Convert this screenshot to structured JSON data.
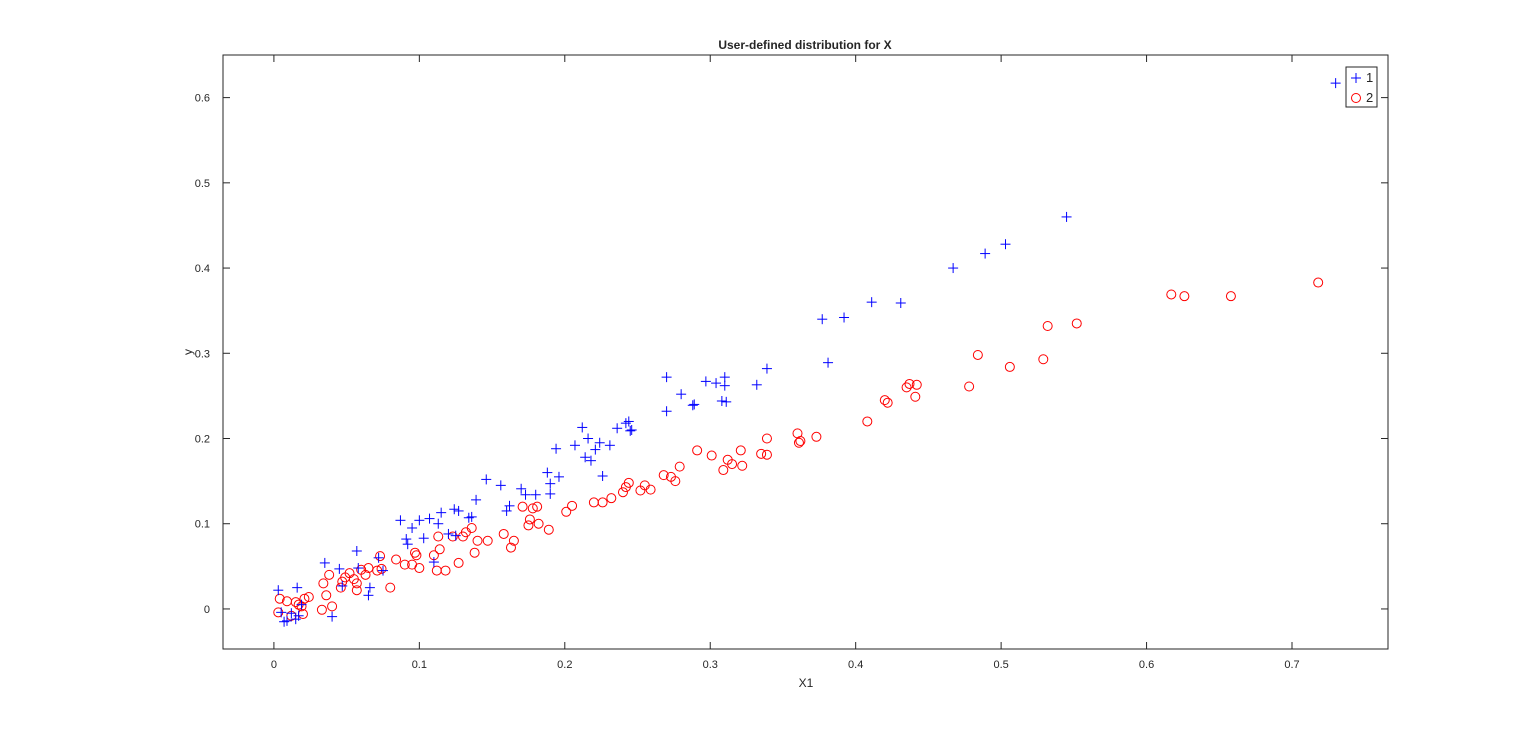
{
  "chart_data": {
    "type": "scatter",
    "title": "User-defined distribution for X",
    "xlabel": "X1",
    "ylabel": "y",
    "xlim": [
      -0.035,
      0.766
    ],
    "ylim": [
      -0.047,
      0.65
    ],
    "xticks": [
      0,
      0.1,
      0.2,
      0.3,
      0.4,
      0.5,
      0.6,
      0.7
    ],
    "xtick_labels": [
      "0",
      "0.1",
      "0.2",
      "0.3",
      "0.4",
      "0.5",
      "0.6",
      "0.7"
    ],
    "yticks": [
      0,
      0.1,
      0.2,
      0.3,
      0.4,
      0.5,
      0.6
    ],
    "ytick_labels": [
      "0",
      "0.1",
      "0.2",
      "0.3",
      "0.4",
      "0.5",
      "0.6"
    ],
    "grid": false,
    "legend_position": "upper right (inside)",
    "series": [
      {
        "name": "1",
        "marker": "+",
        "color": "#0000ff",
        "points": [
          [
            0.003,
            0.022
          ],
          [
            0.005,
            -0.004
          ],
          [
            0.007,
            -0.015
          ],
          [
            0.009,
            -0.014
          ],
          [
            0.012,
            -0.005
          ],
          [
            0.015,
            -0.012
          ],
          [
            0.016,
            0.025
          ],
          [
            0.017,
            -0.008
          ],
          [
            0.019,
            0.005
          ],
          [
            0.035,
            0.054
          ],
          [
            0.04,
            -0.009
          ],
          [
            0.045,
            0.047
          ],
          [
            0.047,
            0.027
          ],
          [
            0.057,
            0.068
          ],
          [
            0.058,
            0.048
          ],
          [
            0.065,
            0.016
          ],
          [
            0.066,
            0.025
          ],
          [
            0.072,
            0.06
          ],
          [
            0.075,
            0.045
          ],
          [
            0.087,
            0.104
          ],
          [
            0.091,
            0.082
          ],
          [
            0.092,
            0.076
          ],
          [
            0.095,
            0.095
          ],
          [
            0.1,
            0.104
          ],
          [
            0.103,
            0.083
          ],
          [
            0.107,
            0.106
          ],
          [
            0.11,
            0.055
          ],
          [
            0.113,
            0.1
          ],
          [
            0.115,
            0.113
          ],
          [
            0.12,
            0.088
          ],
          [
            0.124,
            0.117
          ],
          [
            0.127,
            0.115
          ],
          [
            0.125,
            0.086
          ],
          [
            0.134,
            0.107
          ],
          [
            0.136,
            0.108
          ],
          [
            0.139,
            0.128
          ],
          [
            0.146,
            0.152
          ],
          [
            0.156,
            0.145
          ],
          [
            0.16,
            0.115
          ],
          [
            0.162,
            0.121
          ],
          [
            0.17,
            0.141
          ],
          [
            0.173,
            0.134
          ],
          [
            0.18,
            0.134
          ],
          [
            0.188,
            0.16
          ],
          [
            0.19,
            0.147
          ],
          [
            0.19,
            0.135
          ],
          [
            0.194,
            0.188
          ],
          [
            0.196,
            0.155
          ],
          [
            0.207,
            0.192
          ],
          [
            0.212,
            0.213
          ],
          [
            0.214,
            0.178
          ],
          [
            0.216,
            0.2
          ],
          [
            0.218,
            0.174
          ],
          [
            0.221,
            0.187
          ],
          [
            0.224,
            0.195
          ],
          [
            0.226,
            0.156
          ],
          [
            0.231,
            0.192
          ],
          [
            0.236,
            0.212
          ],
          [
            0.242,
            0.218
          ],
          [
            0.244,
            0.22
          ],
          [
            0.245,
            0.209
          ],
          [
            0.246,
            0.21
          ],
          [
            0.27,
            0.272
          ],
          [
            0.27,
            0.232
          ],
          [
            0.28,
            0.252
          ],
          [
            0.288,
            0.239
          ],
          [
            0.289,
            0.24
          ],
          [
            0.297,
            0.267
          ],
          [
            0.304,
            0.265
          ],
          [
            0.31,
            0.262
          ],
          [
            0.31,
            0.272
          ],
          [
            0.308,
            0.244
          ],
          [
            0.311,
            0.243
          ],
          [
            0.332,
            0.263
          ],
          [
            0.339,
            0.282
          ],
          [
            0.377,
            0.34
          ],
          [
            0.381,
            0.289
          ],
          [
            0.392,
            0.342
          ],
          [
            0.411,
            0.36
          ],
          [
            0.431,
            0.359
          ],
          [
            0.467,
            0.4
          ],
          [
            0.489,
            0.417
          ],
          [
            0.503,
            0.428
          ],
          [
            0.545,
            0.46
          ],
          [
            0.73,
            0.617
          ]
        ]
      },
      {
        "name": "2",
        "marker": "o",
        "color": "#ff0000",
        "points": [
          [
            0.003,
            -0.004
          ],
          [
            0.004,
            0.012
          ],
          [
            0.009,
            0.009
          ],
          [
            0.012,
            -0.008
          ],
          [
            0.015,
            0.008
          ],
          [
            0.017,
            0.005
          ],
          [
            0.019,
            0.003
          ],
          [
            0.021,
            0.012
          ],
          [
            0.024,
            0.014
          ],
          [
            0.02,
            -0.006
          ],
          [
            0.033,
            -0.001
          ],
          [
            0.034,
            0.03
          ],
          [
            0.036,
            0.016
          ],
          [
            0.038,
            0.04
          ],
          [
            0.04,
            0.003
          ],
          [
            0.046,
            0.025
          ],
          [
            0.047,
            0.032
          ],
          [
            0.049,
            0.037
          ],
          [
            0.052,
            0.042
          ],
          [
            0.055,
            0.035
          ],
          [
            0.057,
            0.03
          ],
          [
            0.057,
            0.022
          ],
          [
            0.06,
            0.046
          ],
          [
            0.063,
            0.04
          ],
          [
            0.065,
            0.048
          ],
          [
            0.071,
            0.045
          ],
          [
            0.073,
            0.062
          ],
          [
            0.074,
            0.047
          ],
          [
            0.08,
            0.025
          ],
          [
            0.084,
            0.058
          ],
          [
            0.09,
            0.052
          ],
          [
            0.095,
            0.052
          ],
          [
            0.097,
            0.066
          ],
          [
            0.098,
            0.063
          ],
          [
            0.1,
            0.048
          ],
          [
            0.11,
            0.063
          ],
          [
            0.112,
            0.045
          ],
          [
            0.114,
            0.07
          ],
          [
            0.113,
            0.085
          ],
          [
            0.118,
            0.045
          ],
          [
            0.123,
            0.085
          ],
          [
            0.127,
            0.054
          ],
          [
            0.13,
            0.085
          ],
          [
            0.132,
            0.09
          ],
          [
            0.136,
            0.095
          ],
          [
            0.138,
            0.066
          ],
          [
            0.14,
            0.08
          ],
          [
            0.147,
            0.08
          ],
          [
            0.158,
            0.088
          ],
          [
            0.163,
            0.072
          ],
          [
            0.165,
            0.08
          ],
          [
            0.171,
            0.12
          ],
          [
            0.175,
            0.098
          ],
          [
            0.176,
            0.105
          ],
          [
            0.178,
            0.118
          ],
          [
            0.181,
            0.12
          ],
          [
            0.182,
            0.1
          ],
          [
            0.189,
            0.093
          ],
          [
            0.201,
            0.114
          ],
          [
            0.205,
            0.121
          ],
          [
            0.22,
            0.125
          ],
          [
            0.226,
            0.125
          ],
          [
            0.232,
            0.13
          ],
          [
            0.24,
            0.137
          ],
          [
            0.242,
            0.143
          ],
          [
            0.244,
            0.148
          ],
          [
            0.252,
            0.139
          ],
          [
            0.255,
            0.145
          ],
          [
            0.259,
            0.14
          ],
          [
            0.268,
            0.157
          ],
          [
            0.273,
            0.155
          ],
          [
            0.276,
            0.15
          ],
          [
            0.279,
            0.167
          ],
          [
            0.291,
            0.186
          ],
          [
            0.301,
            0.18
          ],
          [
            0.309,
            0.163
          ],
          [
            0.312,
            0.175
          ],
          [
            0.315,
            0.17
          ],
          [
            0.321,
            0.186
          ],
          [
            0.322,
            0.168
          ],
          [
            0.335,
            0.182
          ],
          [
            0.339,
            0.2
          ],
          [
            0.339,
            0.181
          ],
          [
            0.36,
            0.206
          ],
          [
            0.361,
            0.195
          ],
          [
            0.362,
            0.197
          ],
          [
            0.373,
            0.202
          ],
          [
            0.408,
            0.22
          ],
          [
            0.42,
            0.245
          ],
          [
            0.422,
            0.242
          ],
          [
            0.435,
            0.26
          ],
          [
            0.437,
            0.264
          ],
          [
            0.441,
            0.249
          ],
          [
            0.442,
            0.263
          ],
          [
            0.478,
            0.261
          ],
          [
            0.484,
            0.298
          ],
          [
            0.506,
            0.284
          ],
          [
            0.529,
            0.293
          ],
          [
            0.532,
            0.332
          ],
          [
            0.552,
            0.335
          ],
          [
            0.617,
            0.369
          ],
          [
            0.626,
            0.367
          ],
          [
            0.658,
            0.367
          ],
          [
            0.718,
            0.383
          ]
        ]
      }
    ]
  },
  "legend": {
    "entries": [
      {
        "label": "1",
        "marker": "+",
        "color": "#0000ff"
      },
      {
        "label": "2",
        "marker": "o",
        "color": "#ff0000"
      }
    ]
  }
}
